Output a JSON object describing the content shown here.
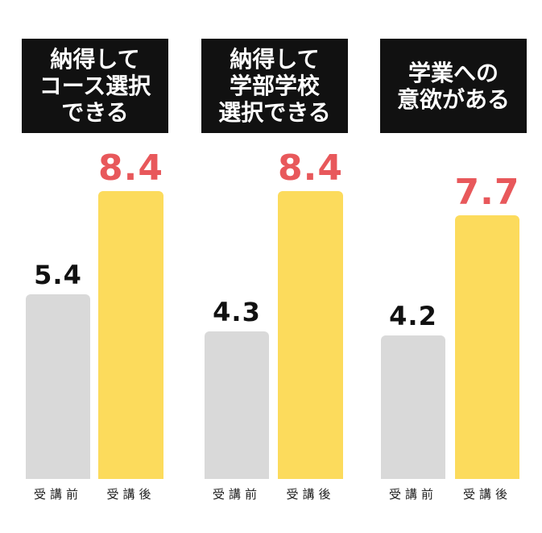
{
  "chart_data": {
    "type": "bar",
    "groups": [
      {
        "title": "納得して\nコース選択\nできる",
        "bars": [
          {
            "category": "受講前",
            "value": 5.4,
            "value_label": "5.4"
          },
          {
            "category": "受講後",
            "value": 8.4,
            "value_label": "8.4"
          }
        ]
      },
      {
        "title": "納得して\n学部学校\n選択できる",
        "bars": [
          {
            "category": "受講前",
            "value": 4.3,
            "value_label": "4.3"
          },
          {
            "category": "受講後",
            "value": 8.4,
            "value_label": "8.4"
          }
        ]
      },
      {
        "title": "学業への\n意欲がある",
        "bars": [
          {
            "category": "受講前",
            "value": 4.2,
            "value_label": "4.2"
          },
          {
            "category": "受講後",
            "value": 7.7,
            "value_label": "7.7"
          }
        ]
      }
    ],
    "categories": [
      "受講前",
      "受講後"
    ],
    "colors": {
      "before_bar": "#d9d9d9",
      "after_bar": "#fcdb5c",
      "before_label": "#111111",
      "after_label": "#e8585b",
      "title_bg": "#111111",
      "title_text": "#ffffff"
    },
    "ylim": [
      0,
      10
    ],
    "grid": false,
    "legend": "none"
  }
}
